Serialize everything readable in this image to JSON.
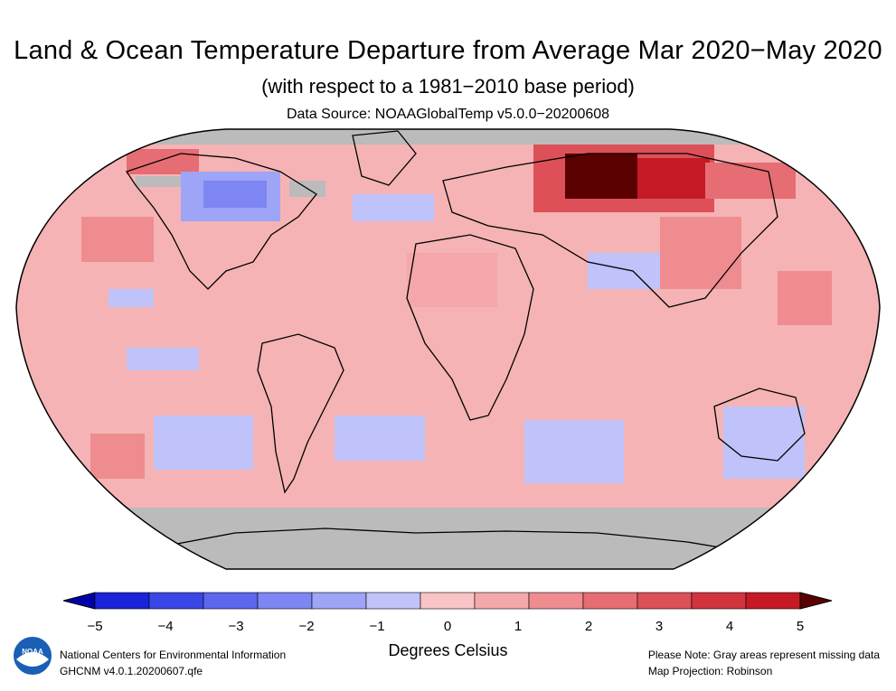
{
  "header": {
    "title": "Land & Ocean Temperature Departure from Average Mar 2020−May 2020",
    "subtitle": "(with respect to a 1981−2010 base period)",
    "data_source": "Data Source: NOAAGlobalTemp v5.0.0−20200608"
  },
  "legend": {
    "tick_labels": [
      "−5",
      "−4",
      "−3",
      "−2",
      "−1",
      "0",
      "1",
      "2",
      "3",
      "4",
      "5"
    ],
    "colors": [
      "#0000a8",
      "#1a23d8",
      "#3a47e6",
      "#5c66ee",
      "#7d86f2",
      "#9ea4f6",
      "#bfc3fa",
      "#f9c4c6",
      "#f5a8ab",
      "#ee8c90",
      "#e66d73",
      "#dd5058",
      "#d2343e",
      "#c51a25",
      "#5a0000"
    ],
    "units": "Degrees Celsius",
    "missing_color": "#bbbbbb"
  },
  "footer": {
    "left_line1": "National Centers for Environmental Information",
    "left_line2": "GHCNM v4.0.1.20200607.qfe",
    "right_line1": "Please Note: Gray areas represent missing data",
    "right_line2": "Map Projection: Robinson"
  },
  "logo": {
    "name": "noaa-logo",
    "text": "NOAA"
  }
}
